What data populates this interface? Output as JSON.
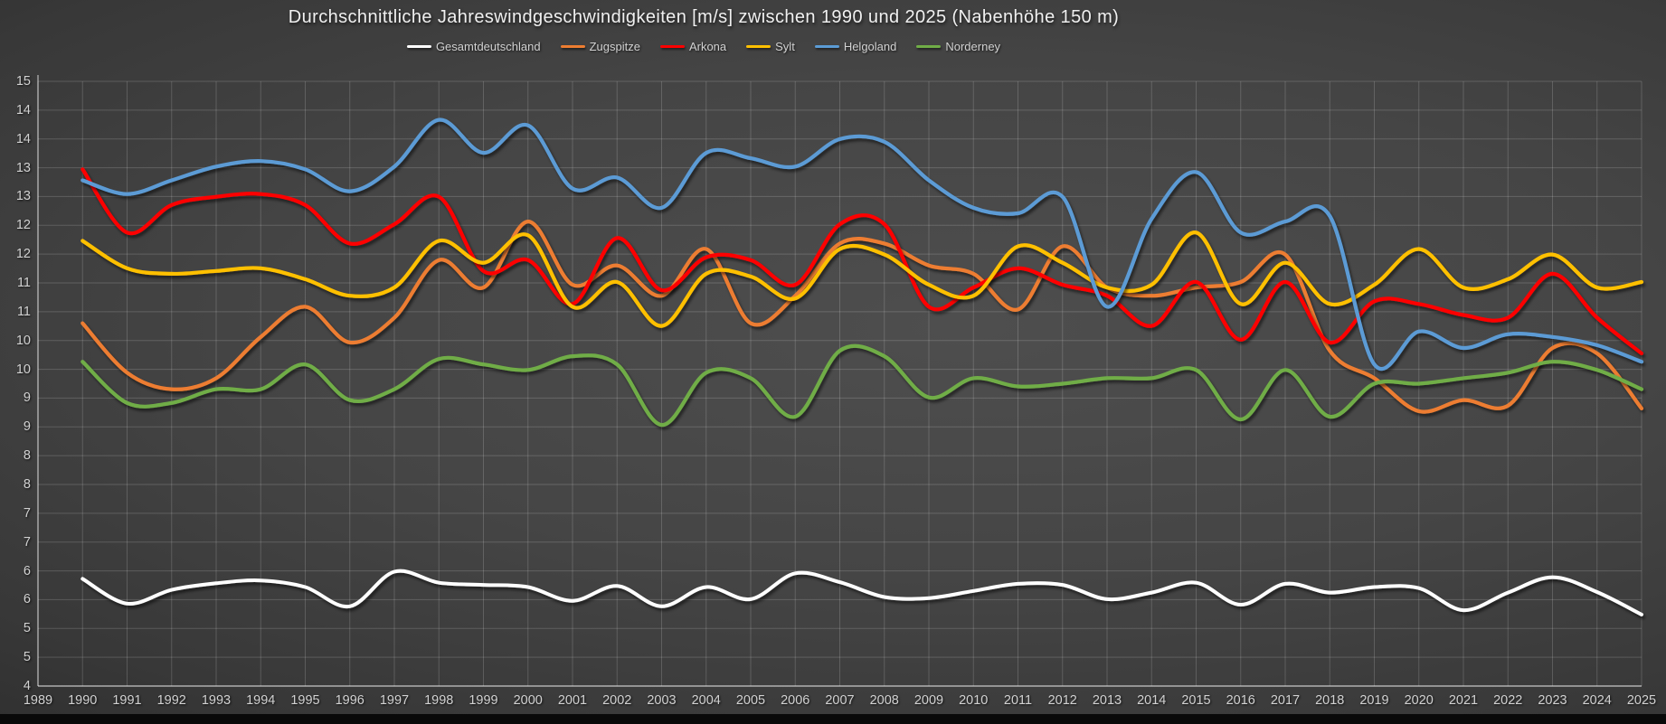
{
  "chart_data": {
    "type": "line",
    "title": "Durchschnittliche Jahreswindgeschwindigkeiten [m/s] zwischen 1990 und 2025 (Nabenhöhe 150 m)",
    "xlabel": "",
    "ylabel": "",
    "smoothed": true,
    "grid": true,
    "legend_position": "top",
    "x_axis_range": [
      1989,
      2025
    ],
    "y_axis_range": [
      4,
      15
    ],
    "x": [
      1990,
      1991,
      1992,
      1993,
      1994,
      1995,
      1996,
      1997,
      1998,
      1999,
      2000,
      2001,
      2002,
      2003,
      2004,
      2005,
      2006,
      2007,
      2008,
      2009,
      2010,
      2011,
      2012,
      2013,
      2014,
      2015,
      2016,
      2017,
      2018,
      2019,
      2020,
      2021,
      2022,
      2023,
      2024,
      2025
    ],
    "series": [
      {
        "name": "Gesamtdeutschland",
        "color": "#FFFFFF",
        "width": 4,
        "values": [
          5.95,
          5.5,
          5.75,
          5.87,
          5.92,
          5.8,
          5.45,
          6.08,
          5.88,
          5.84,
          5.8,
          5.55,
          5.82,
          5.45,
          5.8,
          5.58,
          6.05,
          5.89,
          5.62,
          5.6,
          5.73,
          5.86,
          5.84,
          5.58,
          5.7,
          5.88,
          5.48,
          5.86,
          5.7,
          5.8,
          5.78,
          5.38,
          5.7,
          5.98,
          5.71,
          5.3
        ]
      },
      {
        "name": "Zugspitze",
        "color": "#ED7D31",
        "width": 4.2,
        "values": [
          10.6,
          9.7,
          9.4,
          9.6,
          10.35,
          10.9,
          10.25,
          10.7,
          11.75,
          11.25,
          12.45,
          11.3,
          11.65,
          11.1,
          11.95,
          10.6,
          11.1,
          12.05,
          12.05,
          11.65,
          11.5,
          10.85,
          12.0,
          11.25,
          11.1,
          11.25,
          11.35,
          11.85,
          10.1,
          9.6,
          9.0,
          9.2,
          9.1,
          10.15,
          10.05,
          9.05
        ]
      },
      {
        "name": "Arkona",
        "color": "#FE0000",
        "width": 4.2,
        "values": [
          13.4,
          12.25,
          12.75,
          12.9,
          12.95,
          12.75,
          12.05,
          12.4,
          12.9,
          11.55,
          11.75,
          10.95,
          12.15,
          11.2,
          11.8,
          11.75,
          11.3,
          12.4,
          12.4,
          10.9,
          11.25,
          11.6,
          11.3,
          11.1,
          10.55,
          11.35,
          10.3,
          11.35,
          10.25,
          11.0,
          10.95,
          10.75,
          10.7,
          11.5,
          10.7,
          10.05
        ]
      },
      {
        "name": "Sylt",
        "color": "#FFC000",
        "width": 4.2,
        "values": [
          12.1,
          11.6,
          11.5,
          11.55,
          11.6,
          11.4,
          11.1,
          11.25,
          12.1,
          11.7,
          12.2,
          10.9,
          11.35,
          10.55,
          11.5,
          11.45,
          11.05,
          11.95,
          11.85,
          11.3,
          11.1,
          12.0,
          11.7,
          11.25,
          11.3,
          12.25,
          10.95,
          11.7,
          10.95,
          11.3,
          11.95,
          11.25,
          11.4,
          11.85,
          11.25,
          11.35
        ]
      },
      {
        "name": "Helgoland",
        "color": "#5B9BD5",
        "width": 4.2,
        "values": [
          13.2,
          12.95,
          13.2,
          13.45,
          13.55,
          13.4,
          13.0,
          13.45,
          14.3,
          13.7,
          14.2,
          13.05,
          13.25,
          12.7,
          13.7,
          13.6,
          13.45,
          13.95,
          13.9,
          13.2,
          12.7,
          12.6,
          12.9,
          10.9,
          12.5,
          13.35,
          12.25,
          12.45,
          12.55,
          9.85,
          10.45,
          10.15,
          10.4,
          10.35,
          10.2,
          9.9
        ]
      },
      {
        "name": "Norderney",
        "color": "#70AD47",
        "width": 4.2,
        "values": [
          9.9,
          9.15,
          9.15,
          9.4,
          9.4,
          9.85,
          9.2,
          9.4,
          9.95,
          9.85,
          9.75,
          10.0,
          9.85,
          8.75,
          9.7,
          9.6,
          8.9,
          10.1,
          10.0,
          9.25,
          9.6,
          9.45,
          9.5,
          9.6,
          9.6,
          9.75,
          8.85,
          9.75,
          8.9,
          9.5,
          9.5,
          9.6,
          9.7,
          9.9,
          9.75,
          9.4
        ]
      }
    ]
  },
  "axes": {
    "y_tick_labels_top_to_bottom": [
      "15",
      "14",
      "14",
      "13",
      "13",
      "12",
      "12",
      "11",
      "11",
      "10",
      "10",
      "9",
      "9",
      "8",
      "8",
      "7",
      "7",
      "6",
      "6",
      "5",
      "5",
      "4"
    ],
    "x_tick_labels": [
      "1989",
      "1990",
      "1991",
      "1992",
      "1993",
      "1994",
      "1995",
      "1996",
      "1997",
      "1998",
      "1999",
      "2000",
      "2001",
      "2002",
      "2003",
      "2004",
      "2005",
      "2006",
      "2007",
      "2008",
      "2009",
      "2010",
      "2011",
      "2012",
      "2013",
      "2014",
      "2015",
      "2016",
      "2017",
      "2018",
      "2019",
      "2020",
      "2021",
      "2022",
      "2023",
      "2024",
      "2025"
    ]
  },
  "style": {
    "gridline_color": "rgba(255,255,255,0.17)",
    "axis_line_color": "rgba(255,255,255,0.55)",
    "label_color": "#d2d2d2",
    "title_color": "#f0f0f0"
  }
}
